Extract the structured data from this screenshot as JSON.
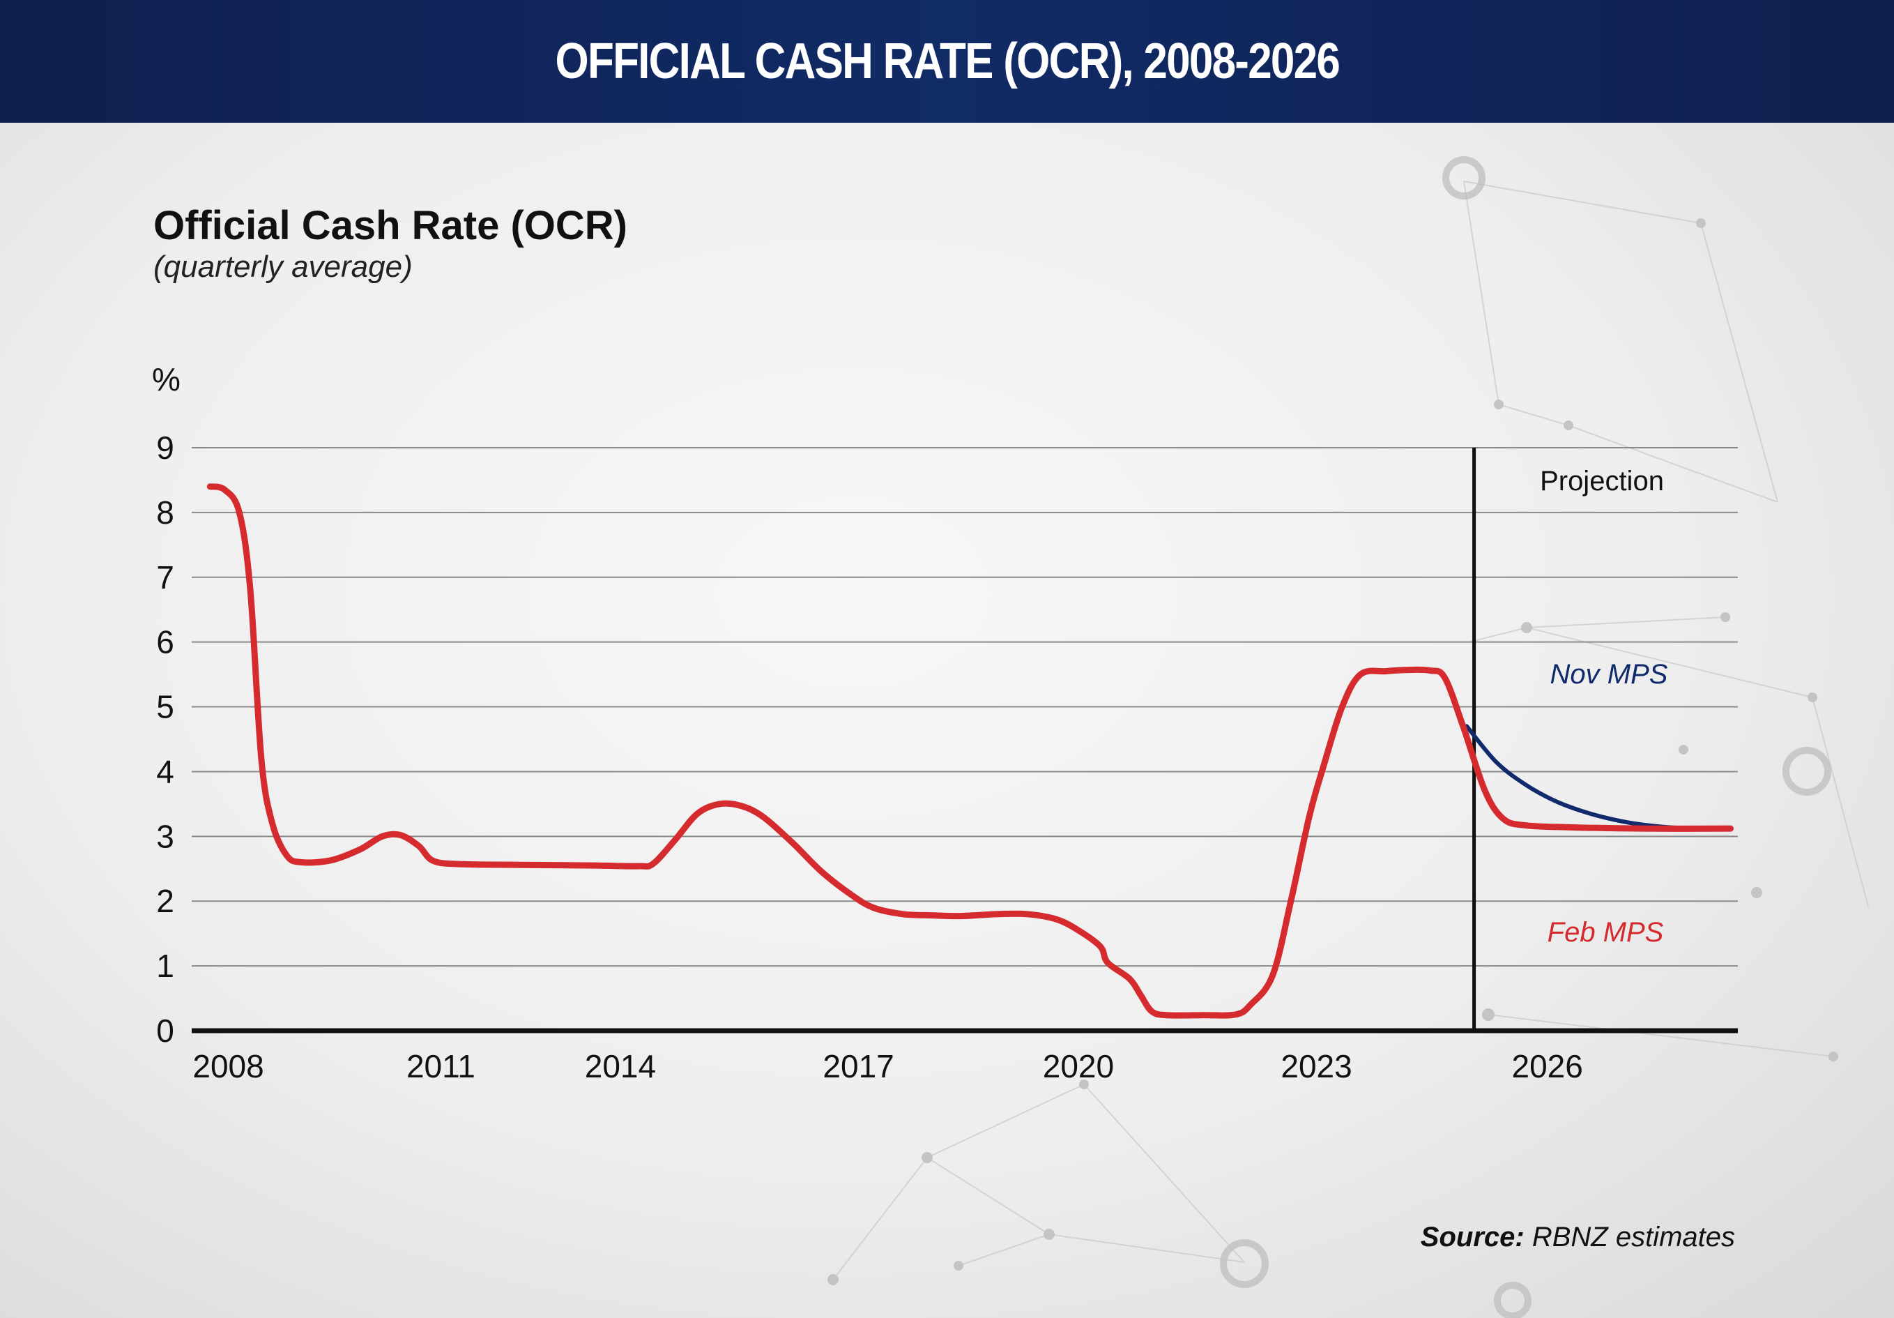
{
  "banner": {
    "title": "OFFICIAL CASH RATE (OCR), 2008-2026"
  },
  "source": {
    "label": "Source:",
    "text": " RBNZ estimates"
  },
  "colors": {
    "banner": "#112b66",
    "feb": "#d52b2f",
    "nov": "#102a6b",
    "axis": "#111111",
    "grid": "#8a8a8a"
  },
  "chart_data": {
    "type": "line",
    "title": "Official Cash Rate (OCR)",
    "subtitle": "(quarterly average)",
    "y_unit": "%",
    "ylim": [
      0,
      9
    ],
    "xlim": [
      2007.5,
      2028.6
    ],
    "grid": true,
    "y_ticks": [
      "0",
      "1",
      "2",
      "3",
      "4",
      "5",
      "6",
      "7",
      "8",
      "9"
    ],
    "x_ticks": [
      {
        "label": "2008",
        "x": 2008.0
      },
      {
        "label": "2011",
        "x": 2010.9
      },
      {
        "label": "2014",
        "x": 2013.35
      },
      {
        "label": "2017",
        "x": 2016.6
      },
      {
        "label": "2020",
        "x": 2019.6
      },
      {
        "label": "2023",
        "x": 2022.85
      },
      {
        "label": "2026",
        "x": 2026.0
      }
    ],
    "projection_start": 2025.0,
    "projection_label": "Projection",
    "series": [
      {
        "name": "Feb MPS",
        "values": [
          [
            2007.75,
            8.4
          ],
          [
            2007.95,
            8.35
          ],
          [
            2008.15,
            8.0
          ],
          [
            2008.3,
            6.8
          ],
          [
            2008.45,
            4.2
          ],
          [
            2008.6,
            3.2
          ],
          [
            2008.8,
            2.7
          ],
          [
            2009.0,
            2.6
          ],
          [
            2009.4,
            2.63
          ],
          [
            2009.8,
            2.8
          ],
          [
            2010.1,
            3.0
          ],
          [
            2010.35,
            3.02
          ],
          [
            2010.6,
            2.85
          ],
          [
            2010.8,
            2.62
          ],
          [
            2011.2,
            2.57
          ],
          [
            2012.0,
            2.56
          ],
          [
            2013.0,
            2.55
          ],
          [
            2013.6,
            2.54
          ],
          [
            2013.8,
            2.58
          ],
          [
            2014.1,
            2.95
          ],
          [
            2014.4,
            3.35
          ],
          [
            2014.7,
            3.5
          ],
          [
            2015.0,
            3.47
          ],
          [
            2015.3,
            3.3
          ],
          [
            2015.7,
            2.9
          ],
          [
            2016.1,
            2.45
          ],
          [
            2016.5,
            2.1
          ],
          [
            2016.8,
            1.9
          ],
          [
            2017.2,
            1.8
          ],
          [
            2017.6,
            1.78
          ],
          [
            2018.0,
            1.77
          ],
          [
            2018.5,
            1.8
          ],
          [
            2018.9,
            1.8
          ],
          [
            2019.3,
            1.72
          ],
          [
            2019.6,
            1.55
          ],
          [
            2019.9,
            1.3
          ],
          [
            2020.0,
            1.05
          ],
          [
            2020.3,
            0.8
          ],
          [
            2020.45,
            0.55
          ],
          [
            2020.6,
            0.3
          ],
          [
            2020.8,
            0.24
          ],
          [
            2021.3,
            0.24
          ],
          [
            2021.75,
            0.25
          ],
          [
            2021.95,
            0.4
          ],
          [
            2022.25,
            0.85
          ],
          [
            2022.5,
            2.0
          ],
          [
            2022.75,
            3.3
          ],
          [
            2022.95,
            4.1
          ],
          [
            2023.2,
            5.0
          ],
          [
            2023.45,
            5.5
          ],
          [
            2023.8,
            5.55
          ],
          [
            2024.1,
            5.57
          ],
          [
            2024.4,
            5.56
          ],
          [
            2024.6,
            5.45
          ],
          [
            2024.85,
            4.7
          ],
          [
            2025.15,
            3.7
          ],
          [
            2025.4,
            3.27
          ],
          [
            2025.7,
            3.17
          ],
          [
            2026.3,
            3.14
          ],
          [
            2027.3,
            3.12
          ],
          [
            2028.5,
            3.12
          ]
        ]
      },
      {
        "name": "Nov MPS",
        "values": [
          [
            2024.9,
            4.7
          ],
          [
            2025.3,
            4.15
          ],
          [
            2025.7,
            3.8
          ],
          [
            2026.1,
            3.55
          ],
          [
            2026.5,
            3.38
          ],
          [
            2026.9,
            3.26
          ],
          [
            2027.3,
            3.18
          ],
          [
            2027.8,
            3.13
          ],
          [
            2028.5,
            3.12
          ]
        ]
      }
    ]
  }
}
